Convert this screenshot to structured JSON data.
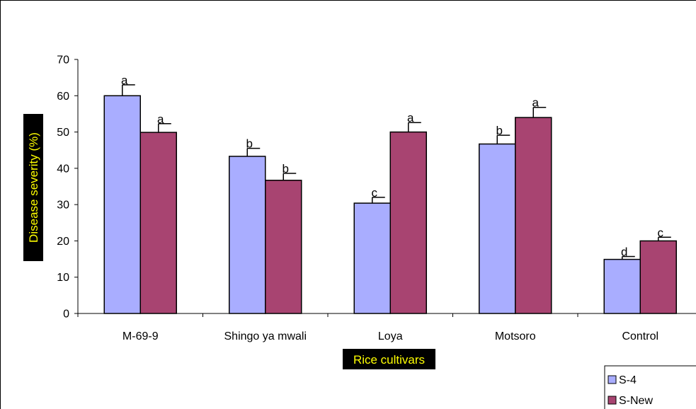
{
  "chart_data": {
    "type": "bar",
    "categories": [
      "M-69-9",
      "Shingo ya mwali",
      "Loya",
      "Motsoro",
      "Control"
    ],
    "series": [
      {
        "name": "S-4",
        "color": "#a9adff",
        "values": [
          60,
          43.3,
          30.4,
          46.7,
          14.9
        ],
        "errors": [
          3,
          2.2,
          1.6,
          2.4,
          0.8
        ],
        "letters": [
          "a",
          "b",
          "c",
          "b",
          "d"
        ]
      },
      {
        "name": "S-New",
        "color": "#a84471",
        "values": [
          49.9,
          36.7,
          50.0,
          54.0,
          20.0
        ],
        "errors": [
          2.4,
          1.9,
          2.6,
          2.8,
          1.0
        ],
        "letters": [
          "a",
          "b",
          "a",
          "a",
          "c"
        ]
      }
    ],
    "ylim": [
      0,
      70
    ],
    "yticks": [
      0,
      10,
      20,
      30,
      40,
      50,
      60,
      70
    ],
    "xlabel": "Rice cultivars",
    "ylabel": "Disease severity (%)",
    "legend_position": "bottom-right",
    "label_box_color": "#000000",
    "label_text_color": "#ffff00",
    "grid": false
  }
}
